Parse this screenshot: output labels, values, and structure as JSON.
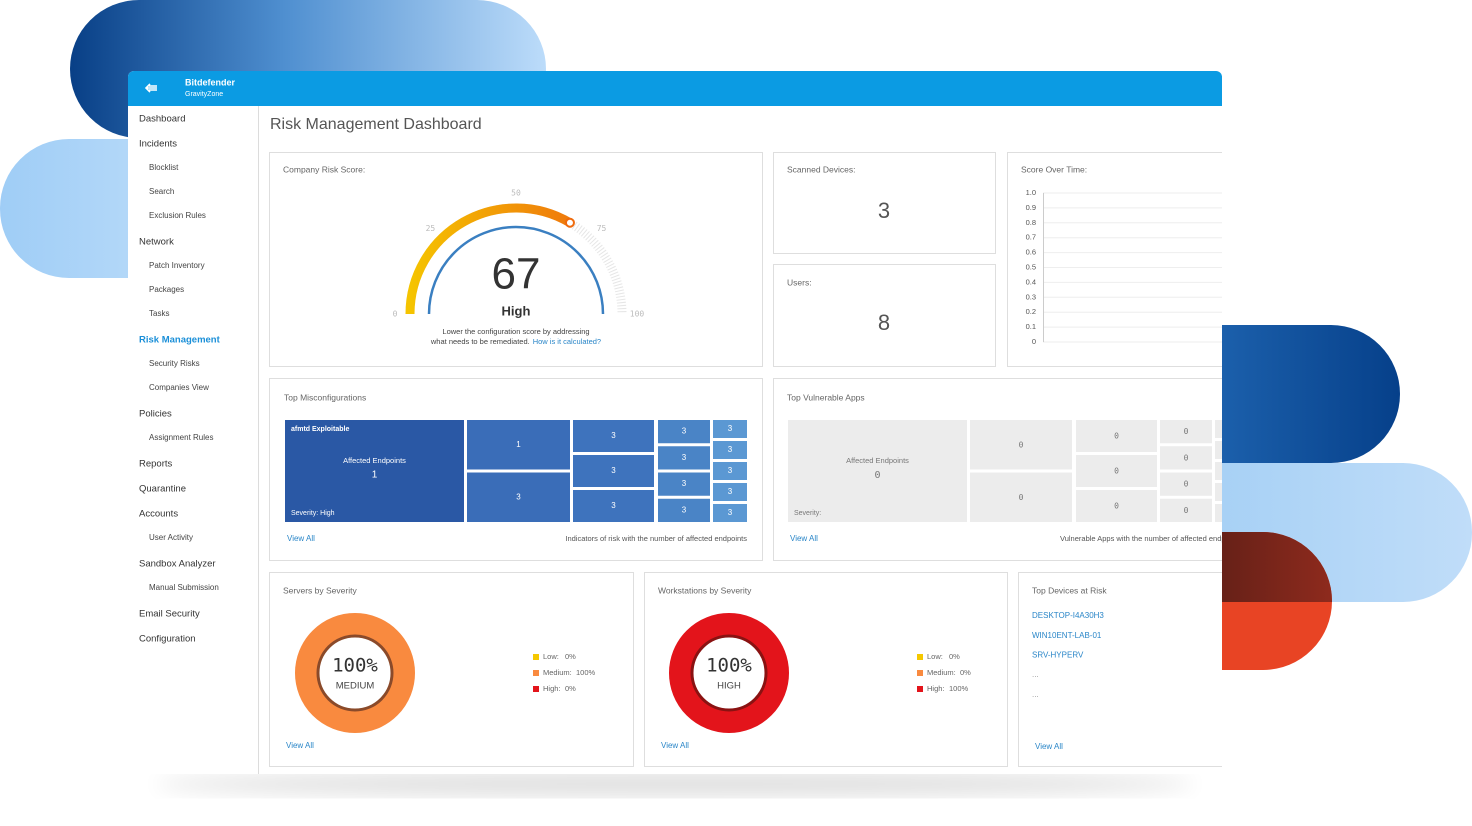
{
  "header": {
    "brand": "Bitdefender",
    "product": "GravityZone"
  },
  "sidebar": {
    "items": [
      {
        "label": "Dashboard"
      },
      {
        "label": "Incidents",
        "children": [
          "Blocklist",
          "Search",
          "Exclusion Rules"
        ]
      },
      {
        "label": "Network",
        "children": [
          "Patch Inventory",
          "Packages",
          "Tasks"
        ]
      },
      {
        "label": "Risk Management",
        "active": true,
        "children": [
          "Security Risks",
          "Companies View"
        ]
      },
      {
        "label": "Policies",
        "children": [
          "Assignment Rules"
        ]
      },
      {
        "label": "Reports"
      },
      {
        "label": "Quarantine"
      },
      {
        "label": "Accounts",
        "children": [
          "User Activity"
        ]
      },
      {
        "label": "Sandbox Analyzer",
        "children": [
          "Manual Submission"
        ]
      },
      {
        "label": "Email Security"
      },
      {
        "label": "Configuration"
      }
    ]
  },
  "page_title": "Risk Management Dashboard",
  "company_risk_score": {
    "title": "Company Risk Score:",
    "score": 67,
    "level": "High",
    "lim": [
      0,
      100
    ],
    "ticks": [
      0,
      25,
      50,
      75,
      100
    ],
    "note_line1": "Lower the configuration score by addressing",
    "note_line2": "what needs to be remediated.",
    "link": "How is it calculated?"
  },
  "scanned_devices": {
    "title": "Scanned Devices:",
    "value": 3
  },
  "users": {
    "title": "Users:",
    "value": 8
  },
  "score_over_time": {
    "title": "Score Over Time:",
    "ylim": [
      0,
      1
    ],
    "yticks": [
      {
        "value": 1,
        "label": "1.0"
      },
      0.9,
      0.8,
      0.7,
      0.6,
      0.5,
      0.4,
      0.3,
      0.2,
      0.1,
      0
    ],
    "grid": true
  },
  "top_misconfigurations": {
    "title": "Top Misconfigurations",
    "tiles": [
      {
        "name": "afmtd Exploitable",
        "label": "Affected Endpoints",
        "value": 1,
        "severity": "Severity: High"
      },
      {
        "value": 1
      },
      {
        "value": 3
      },
      {
        "value": 3
      },
      {
        "value": 3
      },
      {
        "value": 3
      },
      {
        "value": 3
      },
      {
        "value": 3
      },
      {
        "value": 3
      },
      {
        "value": 3
      },
      {
        "value": 3
      },
      {
        "value": 3
      },
      {
        "value": 3
      },
      {
        "value": 3
      },
      {
        "value": 3
      }
    ],
    "view_all": "View All",
    "caption": "Indicators of risk with the number of affected endpoints"
  },
  "top_vulnerable_apps": {
    "title": "Top Vulnerable Apps",
    "tiles": [
      {
        "label": "Affected Endpoints",
        "value": 0,
        "severity": "Severity:"
      },
      {
        "value": 0
      },
      {
        "value": 0
      },
      {
        "value": 0
      },
      {
        "value": 0
      },
      {
        "value": 0
      },
      {
        "value": 0
      },
      {
        "value": 0
      },
      {
        "value": 0
      },
      {
        "value": 0
      }
    ],
    "view_all": "View All",
    "caption": "Vulnerable Apps with the number of affected endpoints"
  },
  "servers_by_severity": {
    "title": "Servers by Severity",
    "percent": {
      "value": 100,
      "label": "100%"
    },
    "level": "MEDIUM",
    "legend": [
      {
        "name": "Low:",
        "value": 0,
        "label": "0%",
        "color": "#f5c800"
      },
      {
        "name": "Medium:",
        "value": 100,
        "label": "100%",
        "color": "#f98a3f"
      },
      {
        "name": "High:",
        "value": 0,
        "label": "0%",
        "color": "#e3141b"
      }
    ],
    "view_all": "View All"
  },
  "workstations_by_severity": {
    "title": "Workstations by Severity",
    "percent": {
      "value": 100,
      "label": "100%"
    },
    "level": "HIGH",
    "legend": [
      {
        "name": "Low:",
        "value": 0,
        "label": "0%",
        "color": "#f5c800"
      },
      {
        "name": "Medium:",
        "value": 0,
        "label": "0%",
        "color": "#f98a3f"
      },
      {
        "name": "High:",
        "value": 100,
        "label": "100%",
        "color": "#e3141b"
      }
    ],
    "view_all": "View All"
  },
  "top_devices_at_risk": {
    "title": "Top Devices at Risk",
    "devices": [
      "DESKTOP-I4A30H3",
      "WIN10ENT-LAB-01",
      "SRV-HYPERV",
      "...",
      "..."
    ],
    "view_all": "View All"
  }
}
